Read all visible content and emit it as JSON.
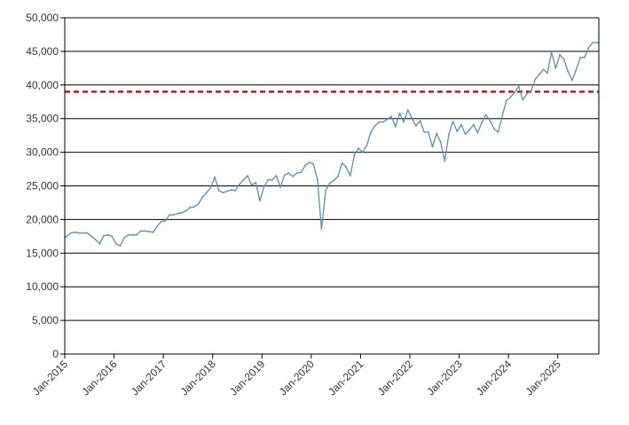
{
  "chart_data": {
    "type": "line",
    "title": "",
    "xlabel": "",
    "ylabel": "",
    "ylim": [
      0,
      50000
    ],
    "y_ticks": [
      0,
      5000,
      10000,
      15000,
      20000,
      25000,
      30000,
      35000,
      40000,
      45000,
      50000
    ],
    "y_tick_labels": [
      "0",
      "5,000",
      "10,000",
      "15,000",
      "20,000",
      "25,000",
      "30,000",
      "35,000",
      "40,000",
      "45,000",
      "50,000"
    ],
    "x_ticks": [
      "2015-01",
      "2016-01",
      "2017-01",
      "2018-01",
      "2019-01",
      "2020-01",
      "2021-01",
      "2022-01",
      "2023-01",
      "2024-01",
      "2025-01"
    ],
    "x_tick_labels": [
      "Jan-2015",
      "Jan-2016",
      "Jan-2017",
      "Jan-2018",
      "Jan-2019",
      "Jan-2020",
      "Jan-2021",
      "Jan-2022",
      "Jan-2023",
      "Jan-2024",
      "Jan-2025"
    ],
    "xlim": [
      "2015-01",
      "2025-10"
    ],
    "grid": "horizontal",
    "legend": "none",
    "reference_line": {
      "y": 39000,
      "color": "#c00000",
      "style": "dashed"
    },
    "series": [
      {
        "color": "#5b8db8",
        "points": [
          [
            "2015-01",
            17400
          ],
          [
            "2015-02",
            18000
          ],
          [
            "2015-03",
            18100
          ],
          [
            "2015-04",
            18000
          ],
          [
            "2015-05",
            18000
          ],
          [
            "2015-06",
            18000
          ],
          [
            "2015-07",
            17500
          ],
          [
            "2015-08",
            17000
          ],
          [
            "2015-09",
            16400
          ],
          [
            "2015-10",
            17600
          ],
          [
            "2015-11",
            17700
          ],
          [
            "2015-12",
            17500
          ],
          [
            "2016-01",
            16400
          ],
          [
            "2016-02",
            16100
          ],
          [
            "2016-03",
            17300
          ],
          [
            "2016-04",
            17700
          ],
          [
            "2016-05",
            17700
          ],
          [
            "2016-06",
            17700
          ],
          [
            "2016-07",
            18300
          ],
          [
            "2016-08",
            18300
          ],
          [
            "2016-09",
            18200
          ],
          [
            "2016-10",
            18100
          ],
          [
            "2016-11",
            19000
          ],
          [
            "2016-12",
            19700
          ],
          [
            "2017-01",
            19800
          ],
          [
            "2017-02",
            20700
          ],
          [
            "2017-03",
            20700
          ],
          [
            "2017-04",
            20900
          ],
          [
            "2017-05",
            21000
          ],
          [
            "2017-06",
            21300
          ],
          [
            "2017-07",
            21800
          ],
          [
            "2017-08",
            21900
          ],
          [
            "2017-09",
            22300
          ],
          [
            "2017-10",
            23300
          ],
          [
            "2017-11",
            24000
          ],
          [
            "2017-12",
            24700
          ],
          [
            "2018-01",
            26300
          ],
          [
            "2018-02",
            24300
          ],
          [
            "2018-03",
            24000
          ],
          [
            "2018-04",
            24200
          ],
          [
            "2018-05",
            24400
          ],
          [
            "2018-06",
            24300
          ],
          [
            "2018-07",
            25200
          ],
          [
            "2018-08",
            25900
          ],
          [
            "2018-09",
            26500
          ],
          [
            "2018-10",
            25100
          ],
          [
            "2018-11",
            25500
          ],
          [
            "2018-12",
            22800
          ],
          [
            "2019-01",
            24900
          ],
          [
            "2019-02",
            25900
          ],
          [
            "2019-03",
            25900
          ],
          [
            "2019-04",
            26500
          ],
          [
            "2019-05",
            24800
          ],
          [
            "2019-06",
            26600
          ],
          [
            "2019-07",
            26900
          ],
          [
            "2019-08",
            26400
          ],
          [
            "2019-09",
            26900
          ],
          [
            "2019-10",
            27000
          ],
          [
            "2019-11",
            28000
          ],
          [
            "2019-12",
            28500
          ],
          [
            "2020-01",
            28300
          ],
          [
            "2020-02",
            26000
          ],
          [
            "2020-03",
            18600
          ],
          [
            "2020-04",
            24300
          ],
          [
            "2020-05",
            25400
          ],
          [
            "2020-06",
            25800
          ],
          [
            "2020-07",
            26400
          ],
          [
            "2020-08",
            28400
          ],
          [
            "2020-09",
            27800
          ],
          [
            "2020-10",
            26500
          ],
          [
            "2020-11",
            29600
          ],
          [
            "2020-12",
            30600
          ],
          [
            "2021-01",
            30000
          ],
          [
            "2021-02",
            31000
          ],
          [
            "2021-03",
            33000
          ],
          [
            "2021-04",
            33900
          ],
          [
            "2021-05",
            34500
          ],
          [
            "2021-06",
            34500
          ],
          [
            "2021-07",
            34900
          ],
          [
            "2021-08",
            35300
          ],
          [
            "2021-09",
            33800
          ],
          [
            "2021-10",
            35800
          ],
          [
            "2021-11",
            34500
          ],
          [
            "2021-12",
            36300
          ],
          [
            "2022-01",
            35100
          ],
          [
            "2022-02",
            33900
          ],
          [
            "2022-03",
            34700
          ],
          [
            "2022-04",
            33000
          ],
          [
            "2022-05",
            33000
          ],
          [
            "2022-06",
            30800
          ],
          [
            "2022-07",
            32800
          ],
          [
            "2022-08",
            31500
          ],
          [
            "2022-09",
            28700
          ],
          [
            "2022-10",
            32700
          ],
          [
            "2022-11",
            34600
          ],
          [
            "2022-12",
            33100
          ],
          [
            "2023-01",
            34100
          ],
          [
            "2023-02",
            32700
          ],
          [
            "2023-03",
            33300
          ],
          [
            "2023-04",
            34100
          ],
          [
            "2023-05",
            32900
          ],
          [
            "2023-06",
            34400
          ],
          [
            "2023-07",
            35600
          ],
          [
            "2023-08",
            34700
          ],
          [
            "2023-09",
            33500
          ],
          [
            "2023-10",
            33000
          ],
          [
            "2023-11",
            35400
          ],
          [
            "2023-12",
            37700
          ],
          [
            "2024-01",
            38200
          ],
          [
            "2024-02",
            38900
          ],
          [
            "2024-03",
            39800
          ],
          [
            "2024-04",
            37800
          ],
          [
            "2024-05",
            38700
          ],
          [
            "2024-06",
            39100
          ],
          [
            "2024-07",
            40800
          ],
          [
            "2024-08",
            41600
          ],
          [
            "2024-09",
            42300
          ],
          [
            "2024-10",
            41800
          ],
          [
            "2024-11",
            44900
          ],
          [
            "2024-12",
            42500
          ],
          [
            "2025-01",
            44500
          ],
          [
            "2025-02",
            43800
          ],
          [
            "2025-03",
            42000
          ],
          [
            "2025-04",
            40700
          ],
          [
            "2025-05",
            42300
          ],
          [
            "2025-06",
            44100
          ],
          [
            "2025-07",
            44100
          ],
          [
            "2025-08",
            45500
          ],
          [
            "2025-09",
            46300
          ],
          [
            "2025-10",
            46300
          ]
        ]
      }
    ]
  }
}
